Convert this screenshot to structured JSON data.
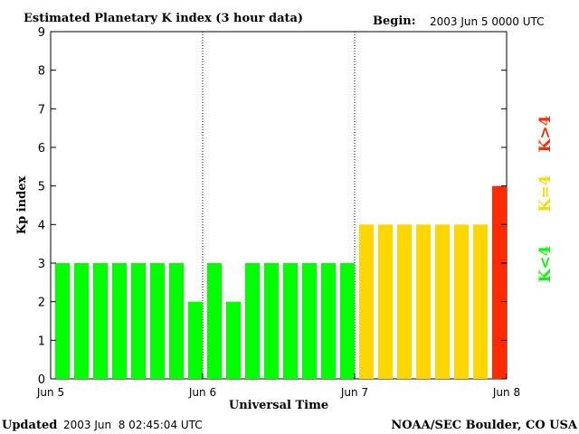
{
  "header": {
    "title": "Estimated Planetary K index (3 hour data)",
    "begin_label": "Begin:",
    "begin_value": "2003 Jun 5 0000 UTC"
  },
  "footer": {
    "updated_label": "Updated",
    "updated_value": "2003 Jun  8 02:45:04 UTC",
    "credit": "NOAA/SEC Boulder, CO USA"
  },
  "legend": {
    "high": "K>4",
    "equal": "K=4",
    "low": "K<4"
  },
  "colors": {
    "low": "#00ff00",
    "equal": "#ffd700",
    "high": "#ff2a00",
    "axis": "#000000"
  },
  "chart_data": {
    "type": "bar",
    "title": "Estimated Planetary K index (3 hour data)",
    "xlabel": "Universal Time",
    "ylabel": "Kp index",
    "ylim": [
      0,
      9
    ],
    "yticks": [
      "0",
      "1",
      "2",
      "3",
      "4",
      "5",
      "6",
      "7",
      "8",
      "9"
    ],
    "xticks": [
      "Jun 5",
      "Jun 6",
      "Jun 7",
      "Jun 8"
    ],
    "day_dividers": [
      "Jun 6",
      "Jun 7"
    ],
    "interval_hours": 3,
    "values": [
      3,
      3,
      3,
      3,
      3,
      3,
      3,
      2,
      3,
      2,
      3,
      3,
      3,
      3,
      3,
      3,
      4,
      4,
      4,
      4,
      4,
      4,
      4,
      5
    ]
  }
}
